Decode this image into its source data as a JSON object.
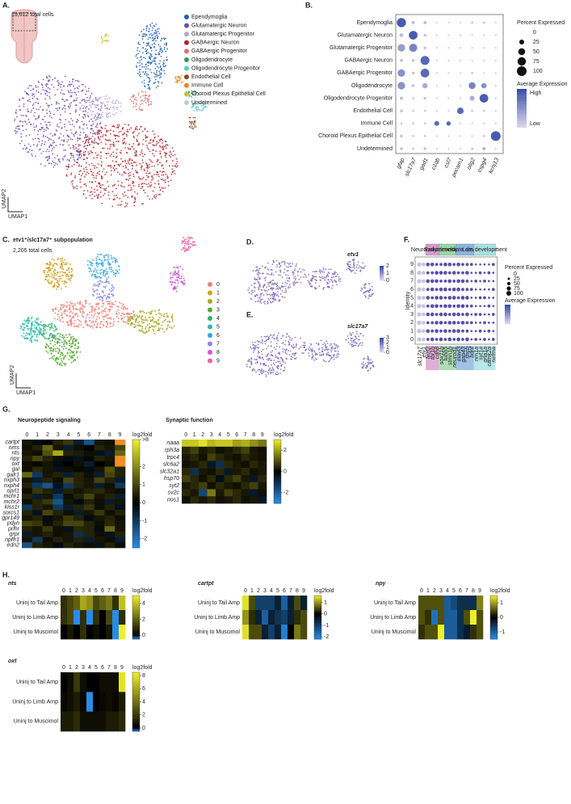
{
  "A": {
    "label": "A.",
    "total": "19,612 total cells",
    "axis_x": "UMAP1",
    "axis_y": "UMAP2",
    "legend": [
      {
        "name": "Ependymoglia",
        "color": "#1f5fb4"
      },
      {
        "name": "Glutamatergic Neuron",
        "color": "#6a4fb0"
      },
      {
        "name": "Glutamatergic Progenitor",
        "color": "#b1a6d6"
      },
      {
        "name": "GABAergic Neuron",
        "color": "#b0232a"
      },
      {
        "name": "GABAergic Progenitor",
        "color": "#d6727a"
      },
      {
        "name": "Oligodendrocyte",
        "color": "#2a9a6a"
      },
      {
        "name": "Oligodendrocyte Progenitor",
        "color": "#5cc9c4"
      },
      {
        "name": "Endothelial Cell",
        "color": "#8a4a1e"
      },
      {
        "name": "Immune Cell",
        "color": "#e8872a"
      },
      {
        "name": "Choroid Plexus Epithelial Cell",
        "color": "#c9c430"
      },
      {
        "name": "Undetermined",
        "color": "#c8c8c8"
      }
    ]
  },
  "B": {
    "label": "B.",
    "rows": [
      "Ependymoglia",
      "Glutamatergic Neuron",
      "Glutamatergic Progenitor",
      "GABAergic Neuron",
      "GABAergic Progenitor",
      "Oligodendrocyte",
      "Oligodendrocyte Progenitor",
      "Endothelial Cell",
      "Immune Cell",
      "Choroid Plexus Epithelial Cell",
      "Undetermined"
    ],
    "genes": [
      "gfap",
      "slc17a7",
      "gad1",
      "c1qb",
      "csl7",
      "pecam1",
      "olig2",
      "cspg4",
      "kcnj13"
    ],
    "pct": [
      [
        90,
        10,
        10,
        3,
        3,
        3,
        5,
        5,
        3
      ],
      [
        15,
        80,
        8,
        3,
        3,
        3,
        3,
        3,
        3
      ],
      [
        60,
        70,
        8,
        3,
        3,
        3,
        3,
        3,
        3
      ],
      [
        10,
        8,
        85,
        3,
        3,
        3,
        3,
        3,
        3
      ],
      [
        60,
        8,
        80,
        3,
        3,
        3,
        5,
        3,
        3
      ],
      [
        60,
        8,
        30,
        3,
        3,
        3,
        50,
        30,
        3
      ],
      [
        10,
        5,
        8,
        3,
        3,
        3,
        25,
        80,
        3
      ],
      [
        8,
        5,
        5,
        3,
        3,
        45,
        5,
        5,
        3
      ],
      [
        5,
        5,
        5,
        25,
        20,
        3,
        3,
        3,
        3
      ],
      [
        8,
        5,
        5,
        3,
        3,
        3,
        3,
        5,
        100
      ],
      [
        8,
        5,
        8,
        3,
        3,
        3,
        5,
        10,
        3
      ]
    ],
    "expr": [
      [
        0.9,
        0.2,
        0.2,
        0.1,
        0.1,
        0.1,
        0.15,
        0.15,
        0.1
      ],
      [
        0.2,
        0.9,
        0.15,
        0.1,
        0.1,
        0.1,
        0.1,
        0.1,
        0.1
      ],
      [
        0.4,
        0.6,
        0.15,
        0.1,
        0.1,
        0.1,
        0.1,
        0.1,
        0.1
      ],
      [
        0.15,
        0.15,
        0.8,
        0.1,
        0.1,
        0.1,
        0.1,
        0.1,
        0.1
      ],
      [
        0.5,
        0.15,
        0.8,
        0.1,
        0.1,
        0.1,
        0.15,
        0.1,
        0.1
      ],
      [
        0.5,
        0.15,
        0.3,
        0.1,
        0.1,
        0.1,
        0.6,
        0.5,
        0.1
      ],
      [
        0.2,
        0.1,
        0.15,
        0.1,
        0.1,
        0.1,
        0.3,
        0.9,
        0.1
      ],
      [
        0.15,
        0.1,
        0.1,
        0.1,
        0.1,
        0.8,
        0.1,
        0.1,
        0.1
      ],
      [
        0.1,
        0.1,
        0.1,
        0.8,
        0.8,
        0.1,
        0.1,
        0.1,
        0.1
      ],
      [
        0.15,
        0.1,
        0.1,
        0.1,
        0.1,
        0.1,
        0.1,
        0.15,
        0.9
      ],
      [
        0.15,
        0.1,
        0.15,
        0.1,
        0.1,
        0.1,
        0.15,
        0.3,
        0.1
      ]
    ],
    "size_title": "Percent Expressed",
    "size_ticks": [
      0,
      25,
      50,
      75,
      100
    ],
    "color_title": "Average Expression",
    "high": "High",
    "low": "Low"
  },
  "C": {
    "label": "C.",
    "title": "etv1⁺/slc17a7⁺ subpopulation",
    "total": "2,205 total cells",
    "axis_x": "UMAP1",
    "axis_y": "UMAP2",
    "legend": [
      {
        "name": "0",
        "color": "#f08078"
      },
      {
        "name": "1",
        "color": "#d4a020"
      },
      {
        "name": "2",
        "color": "#a8a828"
      },
      {
        "name": "3",
        "color": "#58a838"
      },
      {
        "name": "4",
        "color": "#30b070"
      },
      {
        "name": "5",
        "color": "#30b8b0"
      },
      {
        "name": "6",
        "color": "#30a8e0"
      },
      {
        "name": "7",
        "color": "#8888e8"
      },
      {
        "name": "8",
        "color": "#d058d8"
      },
      {
        "name": "9",
        "color": "#f060a8"
      }
    ]
  },
  "D": {
    "label": "D.",
    "gene": "etv1",
    "ticks": [
      0,
      1,
      2
    ]
  },
  "E": {
    "label": "E.",
    "gene": "slc17a7",
    "ticks": [
      0,
      1,
      2,
      3
    ]
  },
  "F": {
    "label": "F.",
    "ylabel": "Identity",
    "groups": [
      {
        "name": "Neuronal identity",
        "color": "#d89ad0",
        "from": 2,
        "to": 4
      },
      {
        "name": "Early development",
        "color": "#9ad6a8",
        "from": 5,
        "to": 8
      },
      {
        "name": "Intermediate development",
        "color": "#8ab4e0",
        "from": 9,
        "to": 12
      },
      {
        "name": "Late development",
        "color": "#a8e0e0",
        "from": 13,
        "to": 17
      }
    ],
    "rows": [
      "0",
      "1",
      "2",
      "3",
      "4",
      "5",
      "6",
      "7",
      "8",
      "9"
    ],
    "genes": [
      "slc17a7",
      "etv1",
      "fezf2",
      "tbr1b",
      "cdh8",
      "sox11b",
      "tubb5",
      "stmn1b",
      "neurod1",
      "elavl3",
      "gap43",
      "sncb",
      "bdnf",
      "nrn1a",
      "syt1a",
      "gria1a",
      "camk2a",
      "nefma"
    ],
    "pct": [
      [
        80,
        60,
        40,
        60,
        40,
        60,
        40,
        60,
        40,
        60,
        40,
        60,
        20,
        40,
        20,
        40,
        20,
        40
      ],
      [
        80,
        60,
        60,
        40,
        60,
        40,
        60,
        40,
        60,
        60,
        40,
        40,
        20,
        20,
        40,
        20,
        40,
        20
      ],
      [
        80,
        60,
        40,
        40,
        60,
        60,
        40,
        60,
        60,
        40,
        60,
        40,
        40,
        20,
        20,
        40,
        20,
        20
      ],
      [
        80,
        60,
        60,
        60,
        40,
        60,
        60,
        40,
        60,
        60,
        40,
        60,
        20,
        40,
        40,
        20,
        20,
        40
      ],
      [
        80,
        60,
        40,
        60,
        60,
        40,
        60,
        60,
        40,
        60,
        60,
        40,
        40,
        20,
        20,
        20,
        40,
        20
      ],
      [
        80,
        60,
        60,
        40,
        60,
        60,
        40,
        60,
        60,
        40,
        60,
        60,
        20,
        20,
        40,
        40,
        20,
        20
      ],
      [
        80,
        60,
        40,
        60,
        40,
        60,
        60,
        40,
        60,
        60,
        40,
        40,
        40,
        20,
        20,
        20,
        20,
        40
      ],
      [
        80,
        60,
        60,
        60,
        60,
        40,
        40,
        60,
        40,
        60,
        60,
        40,
        20,
        40,
        20,
        40,
        20,
        20
      ],
      [
        80,
        60,
        40,
        40,
        60,
        60,
        60,
        40,
        60,
        40,
        40,
        60,
        20,
        20,
        40,
        20,
        40,
        20
      ],
      [
        80,
        60,
        60,
        60,
        40,
        40,
        60,
        60,
        40,
        60,
        40,
        40,
        40,
        20,
        20,
        20,
        20,
        40
      ]
    ],
    "size_title": "Percent Expressed",
    "size_ticks": [
      0,
      25,
      50,
      75,
      100
    ],
    "color_title": "Average Expression"
  },
  "G": {
    "label": "G.",
    "neuro": {
      "title": "Neuropeptide signaling",
      "cols": [
        "0",
        "1",
        "2",
        "3",
        "4",
        "5",
        "6",
        "7",
        "8",
        "9"
      ],
      "rows": [
        "cartpt",
        "nms",
        "nts",
        "npy",
        "oxt",
        "gal",
        "galr1",
        "nxph3",
        "nxph4",
        "oprl1",
        "mchr1",
        "mchr2",
        "kiss1r",
        "sorcs1",
        "gpr149",
        "pdyn",
        "prlhr",
        "grpr",
        "npffr1",
        "edn2"
      ],
      "values": [
        [
          0.3,
          -0.2,
          0,
          0.5,
          0.8,
          -0.5,
          -1.5,
          0.3,
          0.2,
          9
        ],
        [
          0.2,
          0.5,
          1.5,
          0.3,
          -0.5,
          0.2,
          0,
          0.5,
          0.3,
          1
        ],
        [
          0.3,
          0.2,
          1.2,
          2.5,
          0.5,
          0.4,
          0.2,
          -0.3,
          -0.5,
          1.5
        ],
        [
          0.5,
          1,
          0.5,
          0.2,
          -0.2,
          -0.3,
          0.1,
          0.5,
          0.3,
          9
        ],
        [
          0.2,
          0.1,
          0.3,
          -0.2,
          0,
          0.2,
          -0.5,
          0,
          0.2,
          9
        ],
        [
          0.2,
          0.6,
          0.3,
          -0.3,
          0.2,
          0.1,
          -0.2,
          0.3,
          1.2,
          0.5
        ],
        [
          1.5,
          -1,
          0.3,
          0.5,
          -0.5,
          0.5,
          0.2,
          -0.5,
          1,
          0.5
        ],
        [
          0.3,
          -0.5,
          0.5,
          0.2,
          1,
          0.5,
          0.3,
          1,
          0.5,
          -0.5
        ],
        [
          0.5,
          -1,
          -1.5,
          -0.3,
          -1,
          0.5,
          0.3,
          -0.5,
          0.2,
          -1
        ],
        [
          0.2,
          0.8,
          0.5,
          -0.5,
          0.5,
          0.3,
          0.5,
          0.6,
          0.3,
          0.2
        ],
        [
          0.5,
          -0.5,
          0.3,
          -1,
          0.2,
          0.5,
          1,
          0.3,
          0.5,
          -0.5
        ],
        [
          0.2,
          0.5,
          0.8,
          -1.5,
          0.3,
          -0.2,
          0.5,
          0.2,
          -0.5,
          0.3
        ],
        [
          -1,
          0.5,
          0.3,
          -1,
          -0.5,
          0.5,
          0.8,
          0.2,
          0.5,
          -0.3
        ],
        [
          0.5,
          -0.3,
          1,
          0.5,
          0.2,
          -0.5,
          0.3,
          0.8,
          0.2,
          0.5
        ],
        [
          0.3,
          0.5,
          -0.2,
          0.3,
          0.8,
          0.5,
          -0.2,
          0.3,
          0.5,
          0.2
        ],
        [
          1,
          0.8,
          0.2,
          0.5,
          1,
          1,
          0.5,
          0.2,
          0.6,
          0.3
        ],
        [
          0.5,
          0.3,
          0.8,
          0.2,
          -0.3,
          0.6,
          0.5,
          -0.2,
          1.5,
          0.3
        ],
        [
          -0.5,
          0.3,
          0.5,
          0.2,
          0.3,
          -0.8,
          0.5,
          0.2,
          -0.3,
          0.5
        ],
        [
          0.3,
          -1,
          0.2,
          0.5,
          0.3,
          0.5,
          -0.5,
          0.3,
          0.2,
          -0.5
        ],
        [
          -1.5,
          0.5,
          0.3,
          -0.2,
          0.5,
          0.3,
          0.2,
          -0.3,
          0.5,
          0.2
        ]
      ],
      "clim": [
        -2.5,
        3.5
      ],
      "ticks": [
        -2,
        -1,
        0,
        1,
        2,
        {
          "value": 3.5,
          "label": ">8"
        }
      ],
      "bar_label": "log2fold"
    },
    "syn": {
      "title": "Synaptic function",
      "cols": [
        "0",
        "1",
        "2",
        "3",
        "4",
        "5",
        "6",
        "7",
        "8",
        "9"
      ],
      "rows": [
        "naaa",
        "rph3a",
        "trpc4",
        "slc6a2",
        "slc32a1",
        "hsp70",
        "syt2",
        "sv2c",
        "nos1"
      ],
      "values": [
        [
          2.5,
          2.5,
          2.8,
          2.3,
          2.5,
          2.5,
          2,
          2.2,
          1.8,
          1.5
        ],
        [
          0.5,
          0.8,
          0.3,
          0.5,
          0.2,
          0.3,
          0.5,
          0.8,
          0.3,
          0.2
        ],
        [
          0.3,
          0.5,
          0.2,
          0.8,
          0.5,
          0.3,
          0.2,
          0.5,
          0.3,
          0.2
        ],
        [
          0.2,
          0.3,
          0.5,
          -0.5,
          -1,
          0.5,
          0.3,
          0.2,
          0.5,
          0.3
        ],
        [
          0.5,
          -1,
          0.3,
          0.2,
          0.5,
          -0.5,
          0.3,
          0.5,
          0.2,
          0.3
        ],
        [
          0.8,
          0.5,
          0.2,
          0.5,
          -0.3,
          0.5,
          0.8,
          0.3,
          -0.5,
          0.5
        ],
        [
          0.3,
          0.5,
          0.8,
          0.2,
          0.5,
          0.3,
          0.2,
          0.5,
          0.8,
          0.3
        ],
        [
          0.5,
          0.3,
          -1.5,
          1.5,
          0.3,
          0.8,
          0.5,
          0.3,
          -0.5,
          0.2
        ],
        [
          0.2,
          0.5,
          0.3,
          0.5,
          0.2,
          0.3,
          0.5,
          0.2,
          0.3,
          -0.5
        ]
      ],
      "clim": [
        -3,
        3
      ],
      "ticks": [
        -2,
        0,
        2
      ],
      "bar_label": "log2fold"
    }
  },
  "H": {
    "label": "H.",
    "maps": [
      {
        "title": "nts",
        "cols": [
          "0",
          "1",
          "2",
          "3",
          "4",
          "5",
          "6",
          "7",
          "8",
          "9"
        ],
        "rows": [
          "Uninj to Tail Amp",
          "Uninj to Limb Amp",
          "Uninj to Muscimol"
        ],
        "values": [
          [
            1,
            1.5,
            2,
            3.5,
            3,
            1.5,
            2,
            2.5,
            1,
            4
          ],
          [
            1,
            1.5,
            -0.5,
            1,
            -0.5,
            1,
            0,
            1.5,
            -0.5,
            1
          ],
          [
            0,
            0.5,
            0,
            1,
            0,
            0.3,
            0,
            0.5,
            -0.5,
            5
          ]
        ],
        "clim": [
          -0.5,
          5
        ],
        "ticks": [
          0,
          2,
          4
        ],
        "bar_label": "log2fold"
      },
      {
        "title": "cartpt",
        "cols": [
          "0",
          "1",
          "2",
          "3",
          "4",
          "5",
          "6",
          "7",
          "8",
          "9"
        ],
        "rows": [
          "Uninj to Tail Amp",
          "Uninj to Limb Amp",
          "Uninj to Muscimol"
        ],
        "values": [
          [
            1.5,
            0.5,
            -1,
            -1,
            -1,
            -0.5,
            -1.5,
            -0.5,
            0.5,
            -0.5
          ],
          [
            1,
            0.3,
            -0.5,
            -1.5,
            -0.5,
            -0.8,
            -1,
            -0.5,
            0.3,
            0.5
          ],
          [
            1.5,
            0.5,
            0.5,
            -0.5,
            -1,
            -0.5,
            -2,
            0,
            0.8,
            0.5
          ]
        ],
        "clim": [
          -2.2,
          1.6
        ],
        "ticks": [
          -2,
          -1,
          0,
          1
        ],
        "bar_label": "log2fold"
      },
      {
        "title": "npy",
        "cols": [
          "0",
          "1",
          "2",
          "3",
          "4",
          "5",
          "6",
          "7",
          "8",
          "9"
        ],
        "rows": [
          "Uninj to Tail Amp",
          "Uninj to Limb Amp",
          "Uninj to Muscimol"
        ],
        "values": [
          [
            0.5,
            0.5,
            0.5,
            0.5,
            -1,
            -0.8,
            -0.5,
            -0.5,
            -0.5,
            0.8
          ],
          [
            0.5,
            0.3,
            -1.2,
            0.5,
            -1,
            -1,
            -0.5,
            0.5,
            1.5,
            0.5
          ],
          [
            0.3,
            0.5,
            0.5,
            1.5,
            -1,
            -1,
            -0.5,
            -0.3,
            0.3,
            0.5
          ]
        ],
        "clim": [
          -1.5,
          1.5
        ],
        "ticks": [
          -1,
          0,
          1
        ],
        "bar_label": "log2fold"
      },
      {
        "title": "oxt",
        "cols": [
          "0",
          "1",
          "2",
          "3",
          "4",
          "5",
          "6",
          "7",
          "8",
          "9"
        ],
        "rows": [
          "Uninj to Tail Amp",
          "Uninj to Limb Amp",
          "Uninj to Muscimol"
        ],
        "values": [
          [
            0,
            0.5,
            2,
            0.5,
            0,
            0,
            0.5,
            0.5,
            0.5,
            8
          ],
          [
            0.3,
            0.5,
            1,
            0.3,
            -0.5,
            0,
            0.3,
            0.5,
            0.3,
            1
          ],
          [
            1,
            1,
            1.5,
            0.5,
            0.5,
            0.5,
            0.5,
            1,
            1,
            1.5
          ]
        ],
        "clim": [
          -0.5,
          8.5
        ],
        "ticks": [
          0,
          2,
          4,
          6,
          8
        ],
        "bar_label": "log2fold"
      }
    ]
  }
}
